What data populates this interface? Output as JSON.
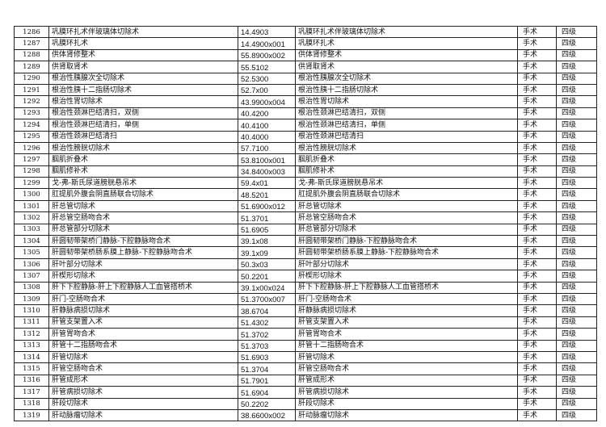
{
  "rows": [
    [
      "1286",
      "巩膜环扎术伴玻璃体切除术",
      "14.4903",
      "巩膜环扎术伴玻璃体切除术",
      "手术",
      "四级"
    ],
    [
      "1287",
      "巩膜环扎术",
      "14.4900x001",
      "巩膜环扎术",
      "手术",
      "四级"
    ],
    [
      "1288",
      "供体肾修整术",
      "55.8900x002",
      "供体肾修整术",
      "手术",
      "四级"
    ],
    [
      "1289",
      "供肾取肾术",
      "55.5102",
      "供肾取肾术",
      "手术",
      "四级"
    ],
    [
      "1290",
      "根治性胰腺次全切除术",
      "52.5300",
      "根治性胰腺次全切除术",
      "手术",
      "四级"
    ],
    [
      "1291",
      "根治性胰十二指肠切除术",
      "52.7x00",
      "根治性胰十二指肠切除术",
      "手术",
      "四级"
    ],
    [
      "1292",
      "根治性胃切除术",
      "43.9900x004",
      "根治性胃切除术",
      "手术",
      "四级"
    ],
    [
      "1293",
      "根治性颈淋巴结清扫，双侧",
      "40.4200",
      "根治性颈淋巴结清扫，双侧",
      "手术",
      "四级"
    ],
    [
      "1294",
      "根治性颈淋巴结清扫，单侧",
      "40.4100",
      "根治性颈淋巴结清扫，单侧",
      "手术",
      "四级"
    ],
    [
      "1295",
      "根治性颈淋巴结清扫",
      "40.4000",
      "根治性颈淋巴结清扫",
      "手术",
      "四级"
    ],
    [
      "1296",
      "根治性膀胱切除术",
      "57.7100",
      "根治性膀胱切除术",
      "手术",
      "四级"
    ],
    [
      "1297",
      "腘肌折叠术",
      "53.8100x001",
      "腘肌折叠术",
      "手术",
      "四级"
    ],
    [
      "1298",
      "腘肌修补术",
      "34.8400x003",
      "腘肌修补术",
      "手术",
      "四级"
    ],
    [
      "1299",
      "戈-弗-斯氏尿道膀胱悬吊术",
      "59.4x01",
      "戈-弗-斯氏尿道膀胱悬吊术",
      "手术",
      "四级"
    ],
    [
      "1300",
      "肛提肌外腹会阴直肠联合切除术",
      "48.5201",
      "肛提肌外腹会阴直肠联合切除术",
      "手术",
      "四级"
    ],
    [
      "1301",
      "肝总管切除术",
      "51.6900x012",
      "肝总管切除术",
      "手术",
      "四级"
    ],
    [
      "1302",
      "肝总管空肠吻合术",
      "51.3701",
      "肝总管空肠吻合术",
      "手术",
      "四级"
    ],
    [
      "1303",
      "肝总管部分切除术",
      "51.6905",
      "肝总管部分切除术",
      "手术",
      "四级"
    ],
    [
      "1304",
      "肝圆韧带架桥门静脉-下腔静脉吻合术",
      "39.1x08",
      "肝圆韧带架桥门静脉-下腔静脉吻合术",
      "手术",
      "四级"
    ],
    [
      "1305",
      "肝圆韧带架桥肠系膜上静脉-下腔静脉吻合术",
      "39.1x09",
      "肝圆韧带架桥肠系膜上静脉-下腔静脉吻合术",
      "手术",
      "四级"
    ],
    [
      "1306",
      "肝叶部分切除术",
      "50.3x03",
      "肝叶部分切除术",
      "手术",
      "四级"
    ],
    [
      "1307",
      "肝楔形切除术",
      "50.2201",
      "肝楔形切除术",
      "手术",
      "四级"
    ],
    [
      "1308",
      "肝下下腔静脉-肝上下腔静脉人工血管搭桥术",
      "39.1x00x024",
      "肝下下腔静脉-肝上下腔静脉人工血管搭桥术",
      "手术",
      "四级"
    ],
    [
      "1309",
      "肝门-空肠吻合术",
      "51.3700x007",
      "肝门-空肠吻合术",
      "手术",
      "四级"
    ],
    [
      "1310",
      "肝静脉病损切除术",
      "38.6704",
      "肝静脉病损切除术",
      "手术",
      "四级"
    ],
    [
      "1311",
      "肝管支架置入术",
      "51.4302",
      "肝管支架置入术",
      "手术",
      "四级"
    ],
    [
      "1312",
      "肝管胃吻合术",
      "51.3702",
      "肝管胃吻合术",
      "手术",
      "四级"
    ],
    [
      "1313",
      "肝管十二指肠吻合术",
      "51.3703",
      "肝管十二指肠吻合术",
      "手术",
      "四级"
    ],
    [
      "1314",
      "肝管切除术",
      "51.6903",
      "肝管切除术",
      "手术",
      "四级"
    ],
    [
      "1315",
      "肝管空肠吻合术",
      "51.3704",
      "肝管空肠吻合术",
      "手术",
      "四级"
    ],
    [
      "1316",
      "肝管成形术",
      "51.7901",
      "肝管成形术",
      "手术",
      "四级"
    ],
    [
      "1317",
      "肝管病损切除术",
      "51.6904",
      "肝管病损切除术",
      "手术",
      "四级"
    ],
    [
      "1318",
      "肝段切除术",
      "50.2202",
      "肝段切除术",
      "手术",
      "四级"
    ],
    [
      "1319",
      "肝动脉瘤切除术",
      "38.6600x002",
      "肝动脉瘤切除术",
      "手术",
      "四级"
    ]
  ]
}
